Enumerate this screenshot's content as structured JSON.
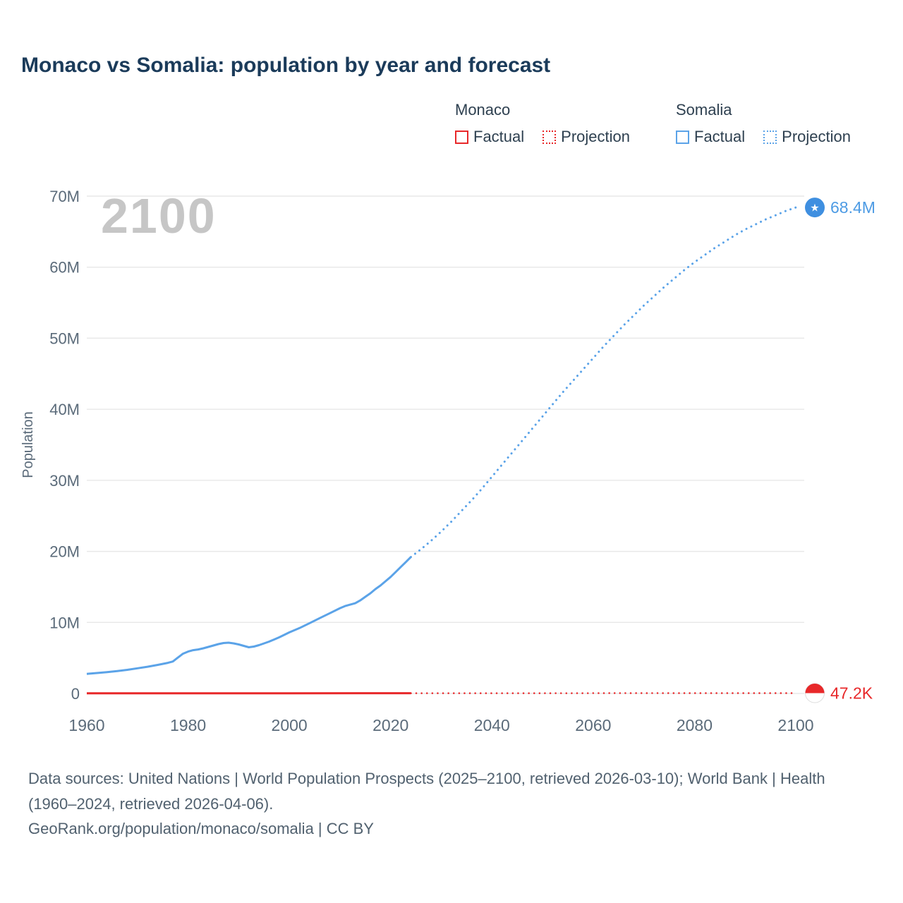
{
  "title": "Monaco vs Somalia: population by year and forecast",
  "watermark": "2100",
  "legend": {
    "monaco": {
      "name": "Monaco",
      "factual": "Factual",
      "projection": "Projection"
    },
    "somalia": {
      "name": "Somalia",
      "factual": "Factual",
      "projection": "Projection"
    }
  },
  "colors": {
    "monaco": "#e8282a",
    "somalia": "#5ba3e8",
    "somalia_marker": "#3f8fe0",
    "grid": "#e9e9e9",
    "axis_text": "#5b6b7a",
    "title": "#1b3b5a",
    "watermark": "#c6c6c6",
    "footer": "#51616f"
  },
  "chart_data": {
    "type": "line",
    "title": "Monaco vs Somalia: population by year and forecast",
    "xlabel": "",
    "ylabel": "Population",
    "x_unit": "year",
    "y_unit": "millions of people",
    "xlim": [
      1960,
      2100
    ],
    "ylim": [
      0,
      70
    ],
    "grid": "horizontal",
    "legend_position": "top-right",
    "xticks": [
      1960,
      1980,
      2000,
      2020,
      2040,
      2060,
      2080,
      2100
    ],
    "yticks": [
      {
        "value": 0,
        "label": "0"
      },
      {
        "value": 10,
        "label": "10M"
      },
      {
        "value": 20,
        "label": "20M"
      },
      {
        "value": 30,
        "label": "30M"
      },
      {
        "value": 40,
        "label": "40M"
      },
      {
        "value": 50,
        "label": "50M"
      },
      {
        "value": 60,
        "label": "60M"
      },
      {
        "value": 70,
        "label": "70M"
      }
    ],
    "series": [
      {
        "name": "Somalia Factual",
        "color": "#5ba3e8",
        "dash": "solid",
        "width": 3,
        "points": [
          [
            1960,
            2.76
          ],
          [
            1962,
            2.88
          ],
          [
            1964,
            3.01
          ],
          [
            1966,
            3.16
          ],
          [
            1968,
            3.33
          ],
          [
            1970,
            3.54
          ],
          [
            1972,
            3.76
          ],
          [
            1974,
            4.02
          ],
          [
            1976,
            4.31
          ],
          [
            1977,
            4.5
          ],
          [
            1978,
            5.05
          ],
          [
            1979,
            5.6
          ],
          [
            1980,
            5.9
          ],
          [
            1981,
            6.1
          ],
          [
            1982,
            6.2
          ],
          [
            1983,
            6.35
          ],
          [
            1984,
            6.55
          ],
          [
            1985,
            6.75
          ],
          [
            1986,
            6.95
          ],
          [
            1987,
            7.1
          ],
          [
            1988,
            7.15
          ],
          [
            1989,
            7.05
          ],
          [
            1990,
            6.9
          ],
          [
            1991,
            6.7
          ],
          [
            1992,
            6.5
          ],
          [
            1993,
            6.6
          ],
          [
            1994,
            6.8
          ],
          [
            1995,
            7.05
          ],
          [
            1996,
            7.3
          ],
          [
            1997,
            7.6
          ],
          [
            1998,
            7.9
          ],
          [
            1999,
            8.25
          ],
          [
            2000,
            8.6
          ],
          [
            2002,
            9.2
          ],
          [
            2004,
            9.9
          ],
          [
            2006,
            10.6
          ],
          [
            2008,
            11.3
          ],
          [
            2010,
            12.0
          ],
          [
            2011,
            12.3
          ],
          [
            2012,
            12.5
          ],
          [
            2013,
            12.7
          ],
          [
            2014,
            13.1
          ],
          [
            2015,
            13.6
          ],
          [
            2016,
            14.1
          ],
          [
            2017,
            14.7
          ],
          [
            2018,
            15.2
          ],
          [
            2019,
            15.8
          ],
          [
            2020,
            16.4
          ],
          [
            2021,
            17.1
          ],
          [
            2022,
            17.8
          ],
          [
            2023,
            18.5
          ],
          [
            2024,
            19.2
          ]
        ]
      },
      {
        "name": "Somalia Projection",
        "color": "#5ba3e8",
        "dash": "dotted",
        "width": 3,
        "points": [
          [
            2024,
            19.2
          ],
          [
            2026,
            20.3
          ],
          [
            2028,
            21.5
          ],
          [
            2030,
            22.8
          ],
          [
            2032,
            24.2
          ],
          [
            2034,
            25.7
          ],
          [
            2036,
            27.2
          ],
          [
            2038,
            28.8
          ],
          [
            2040,
            30.5
          ],
          [
            2042,
            32.2
          ],
          [
            2044,
            33.9
          ],
          [
            2046,
            35.6
          ],
          [
            2048,
            37.3
          ],
          [
            2050,
            39.0
          ],
          [
            2052,
            40.7
          ],
          [
            2054,
            42.4
          ],
          [
            2056,
            44.0
          ],
          [
            2058,
            45.6
          ],
          [
            2060,
            47.2
          ],
          [
            2062,
            48.8
          ],
          [
            2064,
            50.3
          ],
          [
            2066,
            51.8
          ],
          [
            2068,
            53.2
          ],
          [
            2070,
            54.6
          ],
          [
            2072,
            55.9
          ],
          [
            2074,
            57.2
          ],
          [
            2076,
            58.4
          ],
          [
            2078,
            59.6
          ],
          [
            2080,
            60.7
          ],
          [
            2082,
            61.7
          ],
          [
            2084,
            62.7
          ],
          [
            2086,
            63.6
          ],
          [
            2088,
            64.5
          ],
          [
            2090,
            65.3
          ],
          [
            2092,
            66.0
          ],
          [
            2094,
            66.7
          ],
          [
            2096,
            67.3
          ],
          [
            2098,
            67.9
          ],
          [
            2100,
            68.4
          ]
        ]
      },
      {
        "name": "Monaco Factual",
        "color": "#e8282a",
        "dash": "solid",
        "width": 3,
        "points": [
          [
            1960,
            0.022
          ],
          [
            1980,
            0.027
          ],
          [
            2000,
            0.032
          ],
          [
            2024,
            0.039
          ]
        ]
      },
      {
        "name": "Monaco Projection",
        "color": "#e8282a",
        "dash": "dotted",
        "width": 2.5,
        "points": [
          [
            2024,
            0.039
          ],
          [
            2050,
            0.043
          ],
          [
            2075,
            0.046
          ],
          [
            2100,
            0.0472
          ]
        ]
      }
    ],
    "end_markers": [
      {
        "series": "Somalia",
        "year": 2100,
        "value": 68.4,
        "label": "68.4M",
        "marker": "somalia-flag-star",
        "fill": "#3f8fe0",
        "label_color": "#4d9be4"
      },
      {
        "series": "Monaco",
        "year": 2100,
        "value": 0.0472,
        "label": "47.2K",
        "marker": "monaco-flag",
        "fill": "#e8282a",
        "label_color": "#e8282a"
      }
    ]
  },
  "footer": {
    "sources": "Data sources: United Nations | World Population Prospects (2025–2100, retrieved 2026-03-10); World Bank | Health (1960–2024, retrieved 2026-04-06).",
    "attribution": "GeoRank.org/population/monaco/somalia | CC BY"
  }
}
